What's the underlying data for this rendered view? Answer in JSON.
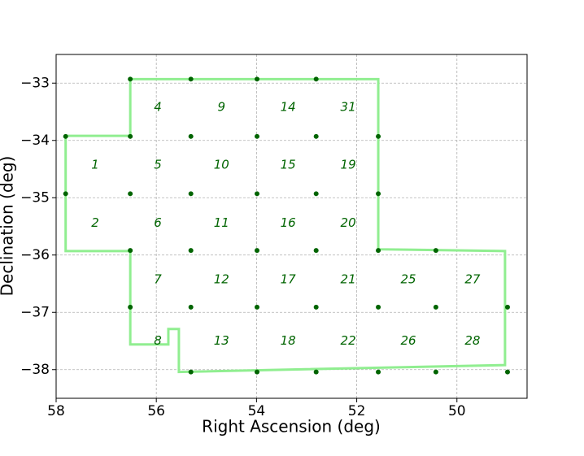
{
  "chart_data": {
    "type": "scatter",
    "x_label": "Right Ascension (deg)",
    "y_label": "Declination (deg)",
    "xlim": [
      58,
      48.6
    ],
    "ylim": [
      -38.5,
      -32.5
    ],
    "xticks": [
      58,
      56,
      54,
      52,
      50
    ],
    "yticks": [
      {
        "value": -33,
        "label": "−33"
      },
      {
        "value": -34,
        "label": "−34"
      },
      {
        "value": -35,
        "label": "−35"
      },
      {
        "value": -36,
        "label": "−36"
      },
      {
        "value": -37,
        "label": "−37"
      },
      {
        "value": -38,
        "label": "−38"
      }
    ],
    "grid": true,
    "points": {
      "color": "#006400",
      "x": [
        56.52,
        55.31,
        53.99,
        52.81,
        57.81,
        56.52,
        55.31,
        53.99,
        52.81,
        51.57,
        57.81,
        56.52,
        55.31,
        53.99,
        52.81,
        51.57,
        56.52,
        55.31,
        53.99,
        52.81,
        51.57,
        50.42,
        56.52,
        55.31,
        53.99,
        52.81,
        51.57,
        50.42,
        48.99,
        55.31,
        53.99,
        52.81,
        51.57,
        50.42,
        48.99
      ],
      "y": [
        -32.93,
        -32.93,
        -32.93,
        -32.93,
        -33.93,
        -33.93,
        -33.93,
        -33.93,
        -33.93,
        -33.93,
        -34.93,
        -34.93,
        -34.93,
        -34.93,
        -34.93,
        -34.93,
        -35.92,
        -35.92,
        -35.92,
        -35.92,
        -35.92,
        -35.92,
        -36.91,
        -36.91,
        -36.91,
        -36.91,
        -36.91,
        -36.91,
        -36.91,
        -38.04,
        -38.04,
        -38.04,
        -38.04,
        -38.04,
        -38.04
      ]
    },
    "outline": {
      "color": "#90ee90",
      "x": [
        56.52,
        51.57,
        51.57,
        49.04,
        49.04,
        55.55,
        55.55,
        55.76,
        55.76,
        56.52,
        56.52,
        57.81,
        57.81,
        56.52
      ],
      "y": [
        -32.93,
        -32.93,
        -35.9,
        -35.93,
        -37.92,
        -38.04,
        -37.29,
        -37.29,
        -37.56,
        -37.56,
        -35.93,
        -35.93,
        -33.92,
        -33.92
      ]
    },
    "annotations": [
      {
        "text": "4",
        "x": 55.97,
        "y": -33.42
      },
      {
        "text": "9",
        "x": 54.7,
        "y": -33.42
      },
      {
        "text": "14",
        "x": 53.37,
        "y": -33.42
      },
      {
        "text": "31",
        "x": 52.17,
        "y": -33.42
      },
      {
        "text": "1",
        "x": 57.22,
        "y": -34.43
      },
      {
        "text": "5",
        "x": 55.97,
        "y": -34.43
      },
      {
        "text": "10",
        "x": 54.7,
        "y": -34.43
      },
      {
        "text": "15",
        "x": 53.37,
        "y": -34.43
      },
      {
        "text": "19",
        "x": 52.17,
        "y": -34.43
      },
      {
        "text": "2",
        "x": 57.22,
        "y": -35.44
      },
      {
        "text": "6",
        "x": 55.97,
        "y": -35.44
      },
      {
        "text": "11",
        "x": 54.7,
        "y": -35.44
      },
      {
        "text": "16",
        "x": 53.37,
        "y": -35.44
      },
      {
        "text": "20",
        "x": 52.17,
        "y": -35.44
      },
      {
        "text": "7",
        "x": 55.97,
        "y": -36.43
      },
      {
        "text": "12",
        "x": 54.7,
        "y": -36.43
      },
      {
        "text": "17",
        "x": 53.37,
        "y": -36.43
      },
      {
        "text": "21",
        "x": 52.17,
        "y": -36.43
      },
      {
        "text": "25",
        "x": 50.97,
        "y": -36.43
      },
      {
        "text": "27",
        "x": 49.69,
        "y": -36.43
      },
      {
        "text": "8",
        "x": 55.97,
        "y": -37.5
      },
      {
        "text": "13",
        "x": 54.7,
        "y": -37.5
      },
      {
        "text": "18",
        "x": 53.37,
        "y": -37.5
      },
      {
        "text": "22",
        "x": 52.17,
        "y": -37.5
      },
      {
        "text": "26",
        "x": 50.97,
        "y": -37.5
      },
      {
        "text": "28",
        "x": 49.69,
        "y": -37.5
      }
    ]
  }
}
